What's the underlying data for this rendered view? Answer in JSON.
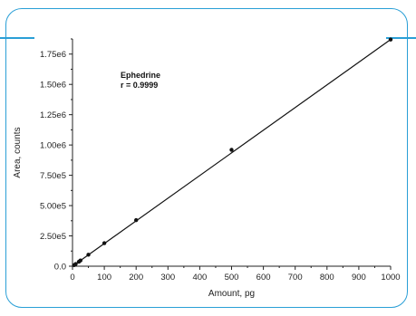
{
  "chart_data": {
    "type": "scatter",
    "title": "",
    "xlabel": "Amount, pg",
    "ylabel": "Area, counts",
    "xlim": [
      0,
      1000
    ],
    "ylim": [
      0,
      1875000
    ],
    "x_ticks": [
      0,
      100,
      200,
      300,
      400,
      500,
      600,
      700,
      800,
      900,
      1000
    ],
    "x_tick_labels": [
      "0",
      "100",
      "200",
      "300",
      "400",
      "500",
      "600",
      "700",
      "800",
      "900",
      "1000"
    ],
    "y_ticks": [
      0,
      250000,
      500000,
      750000,
      1000000,
      1250000,
      1500000,
      1750000
    ],
    "y_tick_labels": [
      "0.0",
      "2.50e5",
      "5.00e5",
      "7.50e5",
      "1.00e6",
      "1.25e6",
      "1.50e6",
      "1.75e6"
    ],
    "grid": false,
    "series": [
      {
        "x": [
          5,
          10,
          20,
          25,
          50,
          100,
          200,
          500,
          1000
        ],
        "y": [
          9000,
          18000,
          37000,
          47000,
          95000,
          190000,
          380000,
          960000,
          1870000
        ]
      }
    ],
    "fit_line": {
      "x": [
        0,
        1000
      ],
      "y": [
        0,
        1870000
      ]
    },
    "annotations": [
      {
        "text": "Ephedrine"
      },
      {
        "text": "r = 0.9999"
      }
    ],
    "colors": {
      "frame": "#2a9fd6",
      "marks": "#111111"
    }
  }
}
